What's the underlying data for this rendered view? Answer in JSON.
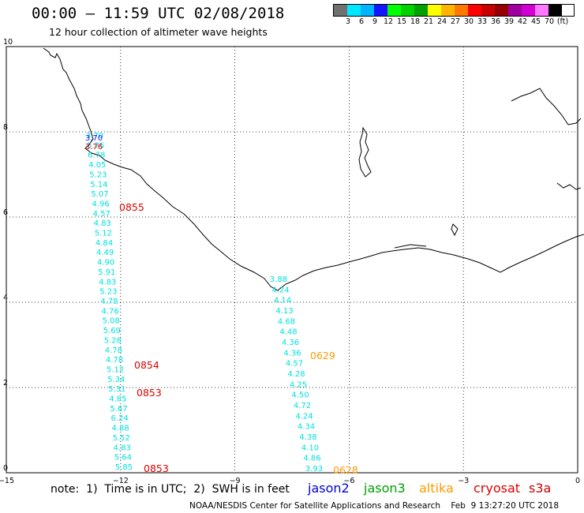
{
  "header": {
    "title": "00:00 — 11:59 UTC 02/08/2018",
    "subtitle": "12 hour collection of altimeter wave heights"
  },
  "colorbar": {
    "colors": [
      "#707070",
      "#00e8ff",
      "#00b4ff",
      "#1414ff",
      "#00ff00",
      "#00d200",
      "#00a000",
      "#ffff00",
      "#ffb400",
      "#ff7800",
      "#ff0000",
      "#c80000",
      "#960000",
      "#a000a0",
      "#d200d2",
      "#ff78ff",
      "#000000"
    ],
    "labels": [
      "3",
      "6",
      "9",
      "12",
      "15",
      "18",
      "21",
      "24",
      "27",
      "30",
      "33",
      "36",
      "39",
      "42",
      "45",
      "70",
      "(ft)"
    ]
  },
  "axes": {
    "x_ticks": [
      "−15",
      "−12",
      "−9",
      "−6",
      "−3",
      "0"
    ],
    "y_ticks": [
      "0",
      "2",
      "4",
      "6",
      "8",
      "10"
    ]
  },
  "tracks": [
    {
      "satellite": "cryosat",
      "color": "#00e0e0",
      "values": [
        "3.70",
        "3.76",
        "6.78",
        "4.05",
        "5.23",
        "5.14",
        "5.07",
        "4.96",
        "4.57",
        "4.83",
        "5.12",
        "4.84",
        "4.49",
        "4.90",
        "5.91",
        "4.83",
        "5.23",
        "4.78",
        "4.76",
        "5.08",
        "5.69",
        "5.28",
        "4.78",
        "4.78",
        "5.12",
        "5.34",
        "5.31",
        "4.85",
        "5.67",
        "6.24",
        "4.88",
        "5.52",
        "4.83",
        "5.64",
        "5.85"
      ]
    },
    {
      "satellite": "altika",
      "color": "#00e0e0",
      "values": [
        "3.88",
        "4.24",
        "4.14",
        "4.13",
        "4.68",
        "4.48",
        "4.36",
        "4.36",
        "4.57",
        "4.28",
        "4.25",
        "4.50",
        "4.72",
        "4.24",
        "4.34",
        "4.38",
        "4.10",
        "4.86",
        "3.93"
      ]
    }
  ],
  "times": [
    {
      "label": "0855",
      "color": "#e00000"
    },
    {
      "label": "0854",
      "color": "#e00000"
    },
    {
      "label": "0853",
      "color": "#e00000"
    },
    {
      "label": "0853",
      "color": "#e00000"
    },
    {
      "label": "0629",
      "color": "#ff9900"
    },
    {
      "label": "0628",
      "color": "#ff9900"
    }
  ],
  "footer": {
    "note": "note:  1)  Time is in UTC;  2)  SWH is in feet",
    "legend": [
      {
        "label": "jason2",
        "color": "#0000dd"
      },
      {
        "label": "jason3",
        "color": "#00a000"
      },
      {
        "label": "altika",
        "color": "#ff9900"
      },
      {
        "label": "cryosat",
        "color": "#e00000"
      },
      {
        "label": "s3a",
        "color": "#c80000"
      }
    ],
    "credit": "NOAA/NESDIS Center for Satellite Applications and Research    Feb  9 13:27:20 UTC 2018"
  }
}
